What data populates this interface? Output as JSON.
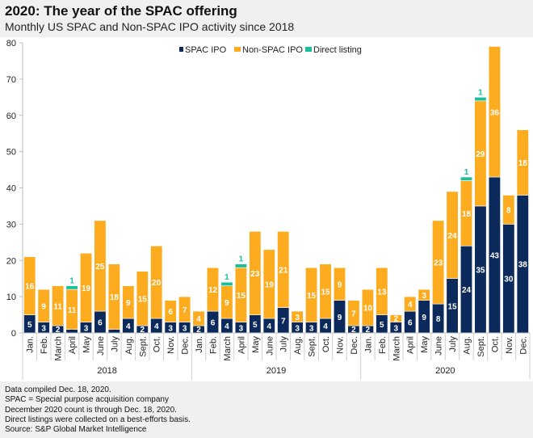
{
  "header": {
    "title": "2020: The year of the SPAC offering",
    "subtitle": "Monthly US SPAC and Non-SPAC IPO activity since 2018"
  },
  "footnotes": [
    "Data compiled Dec. 18, 2020.",
    "SPAC = Special purpose acquisition company",
    "December 2020 count is through Dec. 18, 2020.",
    "Direct listings were collected on a best-efforts basis.",
    "Source: S&P Global Market Intelligence"
  ],
  "chart_data": {
    "type": "bar",
    "stacked": true,
    "title": "2020: The year of the SPAC offering",
    "subtitle": "Monthly US SPAC and Non-SPAC IPO activity since 2018",
    "xlabel": "",
    "ylabel": "",
    "ylim": [
      0,
      80
    ],
    "yticks": [
      0,
      10,
      20,
      30,
      40,
      50,
      60,
      70,
      80
    ],
    "grid": false,
    "legend_position": "top-right",
    "years": [
      "2018",
      "2019",
      "2020"
    ],
    "categories": [
      "Jan.",
      "Feb.",
      "March",
      "April",
      "May",
      "June",
      "July",
      "Aug.",
      "Sept.",
      "Oct.",
      "Nov.",
      "Dec.",
      "Jan.",
      "Feb.",
      "March",
      "April",
      "May",
      "June",
      "July",
      "Aug.",
      "Sept.",
      "Oct.",
      "Nov.",
      "Dec.",
      "Jan.",
      "Feb.",
      "March",
      "April",
      "May",
      "June",
      "July",
      "Aug.",
      "Sept.",
      "Oct.",
      "Nov.",
      "Dec."
    ],
    "series": [
      {
        "name": "SPAC IPO",
        "color": "#0b2a5b",
        "label_color": "#ffffff",
        "values": [
          5,
          3,
          2,
          1,
          3,
          6,
          1,
          4,
          2,
          4,
          3,
          3,
          2,
          6,
          4,
          3,
          5,
          4,
          7,
          3,
          3,
          4,
          9,
          2,
          2,
          5,
          3,
          6,
          9,
          8,
          15,
          24,
          35,
          43,
          30,
          38
        ]
      },
      {
        "name": "Non-SPAC IPO",
        "color": "#fcac1e",
        "label_color": "#ffffff",
        "values": [
          16,
          9,
          11,
          11,
          19,
          25,
          18,
          9,
          15,
          20,
          6,
          7,
          4,
          12,
          9,
          15,
          23,
          19,
          21,
          3,
          15,
          15,
          9,
          7,
          10,
          13,
          2,
          4,
          3,
          23,
          24,
          18,
          29,
          36,
          8,
          18
        ]
      },
      {
        "name": "Direct listing",
        "color": "#1bbf9c",
        "label_color": "#1bbf9c",
        "values": [
          0,
          0,
          0,
          1,
          0,
          0,
          0,
          0,
          0,
          0,
          0,
          0,
          0,
          0,
          1,
          1,
          0,
          0,
          0,
          0,
          0,
          0,
          0,
          0,
          0,
          0,
          0,
          0,
          0,
          0,
          0,
          1,
          1,
          0,
          0,
          0
        ]
      }
    ]
  }
}
